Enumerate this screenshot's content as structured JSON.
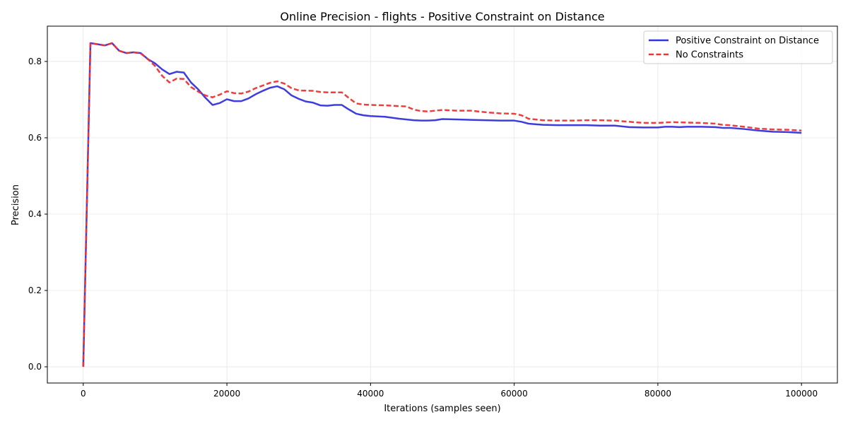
{
  "chart_data": {
    "type": "line",
    "title": "Online Precision - flights - Positive Constraint on Distance",
    "xlabel": "Iterations (samples seen)",
    "ylabel": "Precision",
    "xlim": [
      -5000,
      105000
    ],
    "ylim": [
      -0.0425,
      0.8925
    ],
    "x_ticks": [
      0,
      20000,
      40000,
      60000,
      80000,
      100000
    ],
    "y_ticks": [
      0.0,
      0.2,
      0.4,
      0.6,
      0.8
    ],
    "x_tick_labels": [
      "0",
      "20000",
      "40000",
      "60000",
      "80000",
      "100000"
    ],
    "y_tick_labels": [
      "0.0",
      "0.2",
      "0.4",
      "0.6",
      "0.8"
    ],
    "grid": true,
    "legend_position": "top-right",
    "series": [
      {
        "name": "Positive Constraint on Distance",
        "color": "#3333dd",
        "style": "solid",
        "x": [
          0,
          1000,
          2000,
          3000,
          4000,
          5000,
          6000,
          7000,
          8000,
          9000,
          10000,
          11000,
          12000,
          13000,
          14000,
          15000,
          16000,
          17000,
          18000,
          19000,
          20000,
          21000,
          22000,
          23000,
          24000,
          25000,
          26000,
          27000,
          28000,
          29000,
          30000,
          31000,
          32000,
          33000,
          34000,
          35000,
          36000,
          37000,
          38000,
          39000,
          40000,
          42000,
          44000,
          46000,
          47000,
          48000,
          49000,
          50000,
          52000,
          54000,
          56000,
          58000,
          60000,
          61000,
          62000,
          64000,
          66000,
          68000,
          70000,
          72000,
          74000,
          76000,
          78000,
          80000,
          81000,
          82000,
          83000,
          84000,
          86000,
          88000,
          89000,
          90000,
          92000,
          94000,
          96000,
          98000,
          100000
        ],
        "values": [
          0.0,
          0.848,
          0.845,
          0.842,
          0.848,
          0.828,
          0.822,
          0.824,
          0.822,
          0.806,
          0.795,
          0.779,
          0.767,
          0.773,
          0.771,
          0.745,
          0.727,
          0.705,
          0.686,
          0.691,
          0.701,
          0.696,
          0.696,
          0.703,
          0.714,
          0.723,
          0.731,
          0.735,
          0.727,
          0.711,
          0.702,
          0.695,
          0.692,
          0.685,
          0.684,
          0.686,
          0.686,
          0.674,
          0.663,
          0.659,
          0.657,
          0.655,
          0.65,
          0.646,
          0.645,
          0.645,
          0.646,
          0.649,
          0.648,
          0.647,
          0.646,
          0.645,
          0.645,
          0.642,
          0.637,
          0.634,
          0.633,
          0.633,
          0.633,
          0.632,
          0.632,
          0.628,
          0.627,
          0.627,
          0.629,
          0.629,
          0.628,
          0.629,
          0.629,
          0.628,
          0.626,
          0.626,
          0.623,
          0.619,
          0.616,
          0.615,
          0.613
        ]
      },
      {
        "name": "No Constraints",
        "color": "#ee3333",
        "style": "dashed",
        "x": [
          0,
          1000,
          2000,
          3000,
          4000,
          5000,
          6000,
          7000,
          8000,
          9000,
          10000,
          11000,
          12000,
          13000,
          14000,
          15000,
          16000,
          17000,
          18000,
          19000,
          20000,
          21000,
          22000,
          23000,
          24000,
          25000,
          26000,
          27000,
          28000,
          29000,
          30000,
          32000,
          33000,
          34000,
          36000,
          37000,
          38000,
          39000,
          40000,
          42000,
          44000,
          45000,
          46000,
          47000,
          48000,
          50000,
          52000,
          54000,
          56000,
          58000,
          60000,
          61000,
          62000,
          64000,
          66000,
          68000,
          70000,
          72000,
          74000,
          76000,
          78000,
          80000,
          81000,
          82000,
          84000,
          86000,
          88000,
          89000,
          90000,
          92000,
          94000,
          96000,
          98000,
          100000
        ],
        "values": [
          0.0,
          0.848,
          0.845,
          0.842,
          0.848,
          0.828,
          0.822,
          0.824,
          0.821,
          0.806,
          0.788,
          0.762,
          0.745,
          0.755,
          0.754,
          0.733,
          0.721,
          0.711,
          0.706,
          0.713,
          0.722,
          0.717,
          0.716,
          0.721,
          0.73,
          0.737,
          0.744,
          0.748,
          0.742,
          0.73,
          0.724,
          0.723,
          0.72,
          0.719,
          0.719,
          0.704,
          0.69,
          0.687,
          0.686,
          0.685,
          0.683,
          0.682,
          0.674,
          0.67,
          0.669,
          0.673,
          0.671,
          0.671,
          0.667,
          0.664,
          0.663,
          0.659,
          0.65,
          0.646,
          0.645,
          0.645,
          0.646,
          0.646,
          0.645,
          0.642,
          0.639,
          0.639,
          0.64,
          0.641,
          0.64,
          0.639,
          0.637,
          0.634,
          0.633,
          0.629,
          0.624,
          0.622,
          0.621,
          0.619
        ]
      }
    ]
  }
}
